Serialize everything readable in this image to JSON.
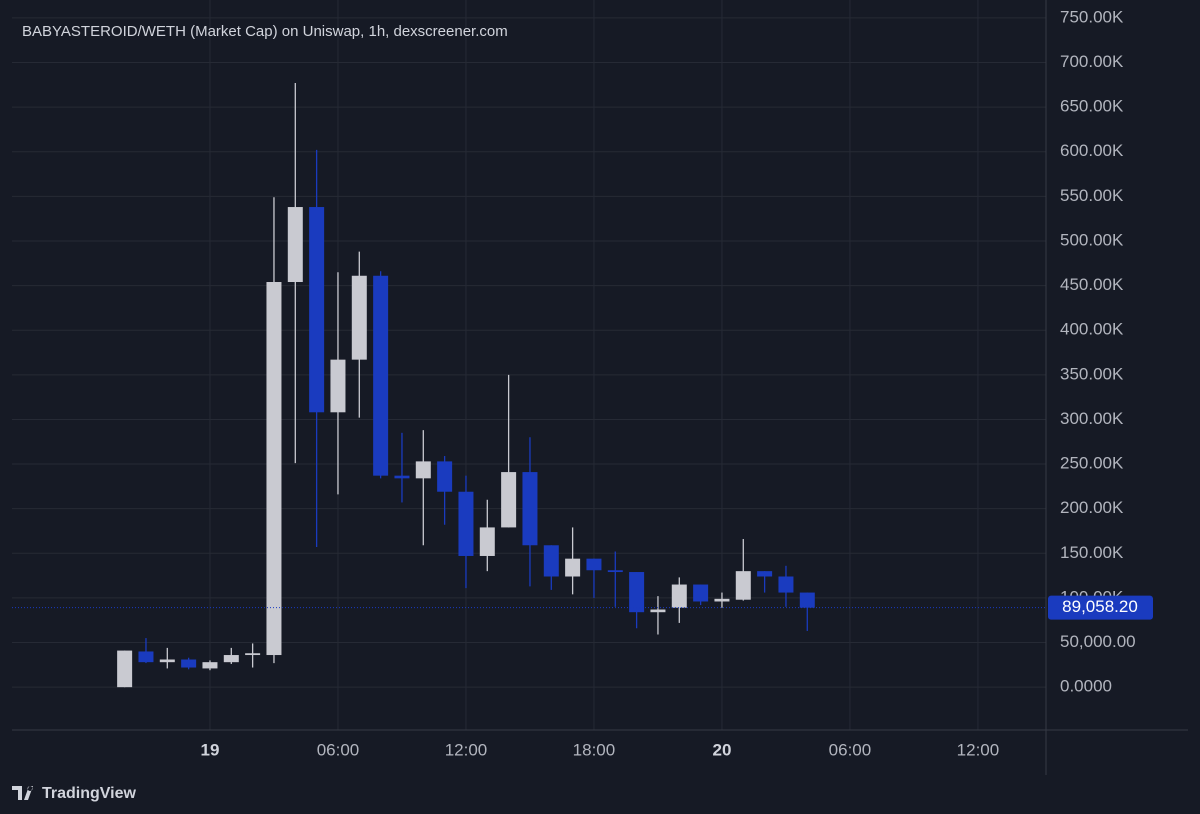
{
  "chart_data": {
    "type": "candlestick",
    "title": "BABYASTEROID/WETH (Market Cap) on Uniswap, 1h, dexscreener.com",
    "x": [
      -4,
      -3,
      -2,
      -1,
      0,
      1,
      2,
      3,
      4,
      5,
      6,
      7,
      8,
      9,
      10,
      11,
      12,
      13,
      14,
      15,
      16,
      17,
      18,
      19,
      20,
      21,
      22,
      23,
      24,
      25,
      26,
      27,
      28
    ],
    "open": [
      0,
      40000,
      28000,
      31000,
      21000,
      28000,
      36000,
      36000,
      454000,
      538000,
      308000,
      367000,
      461000,
      237000,
      234000,
      253000,
      219000,
      147000,
      179000,
      241000,
      159000,
      124000,
      144000,
      131000,
      129000,
      84000,
      89000,
      115000,
      96000,
      98000,
      130000,
      124000,
      106000
    ],
    "high": [
      41000,
      55000,
      44000,
      33000,
      30000,
      44000,
      49000,
      549000,
      677000,
      602000,
      465000,
      488000,
      466000,
      285000,
      288000,
      259000,
      237000,
      210000,
      350000,
      280000,
      159000,
      179000,
      144000,
      152000,
      129000,
      102000,
      123000,
      115000,
      106000,
      166000,
      130000,
      136000,
      106000
    ],
    "low": [
      0,
      27000,
      21000,
      20000,
      19000,
      26000,
      22000,
      27000,
      251000,
      157000,
      216000,
      302000,
      234000,
      207000,
      159000,
      182000,
      111000,
      130000,
      179000,
      113000,
      109000,
      104000,
      100000,
      90000,
      66000,
      59000,
      72000,
      92000,
      89000,
      97000,
      106000,
      90000,
      63000
    ],
    "close": [
      41000,
      28000,
      31000,
      22000,
      28000,
      36000,
      38000,
      454000,
      538000,
      308000,
      367000,
      461000,
      237000,
      234000,
      253000,
      219000,
      147000,
      179000,
      241000,
      159000,
      124000,
      144000,
      131000,
      129000,
      84000,
      87000,
      115000,
      96000,
      99000,
      130000,
      124000,
      106000,
      89058.2
    ],
    "up_color": "#c9cad1",
    "down_color": "#1a3bbf",
    "xlim": [
      -9.28,
      39.19
    ],
    "xticks": [
      {
        "value": 0,
        "label": "19"
      },
      {
        "value": 6,
        "label": "06:00"
      },
      {
        "value": 12,
        "label": "12:00"
      },
      {
        "value": 18,
        "label": "18:00"
      },
      {
        "value": 24,
        "label": "20"
      },
      {
        "value": 30,
        "label": "06:00"
      },
      {
        "value": 36,
        "label": "12:00"
      }
    ],
    "ylim": [
      -48000,
      770000
    ],
    "yticks": [
      {
        "value": 0,
        "label": "0.0000"
      },
      {
        "value": 50000,
        "label": "50,000.00"
      },
      {
        "value": 100000,
        "label": "100.00K"
      },
      {
        "value": 150000,
        "label": "150.00K"
      },
      {
        "value": 200000,
        "label": "200.00K"
      },
      {
        "value": 250000,
        "label": "250.00K"
      },
      {
        "value": 300000,
        "label": "300.00K"
      },
      {
        "value": 350000,
        "label": "350.00K"
      },
      {
        "value": 400000,
        "label": "400.00K"
      },
      {
        "value": 450000,
        "label": "450.00K"
      },
      {
        "value": 500000,
        "label": "500.00K"
      },
      {
        "value": 550000,
        "label": "550.00K"
      },
      {
        "value": 600000,
        "label": "600.00K"
      },
      {
        "value": 650000,
        "label": "650.00K"
      },
      {
        "value": 700000,
        "label": "700.00K"
      },
      {
        "value": 750000,
        "label": "750.00K"
      }
    ],
    "last_price": {
      "value": 89058.2,
      "label": "89,058.20"
    },
    "grid": true
  },
  "branding": "TradingView"
}
